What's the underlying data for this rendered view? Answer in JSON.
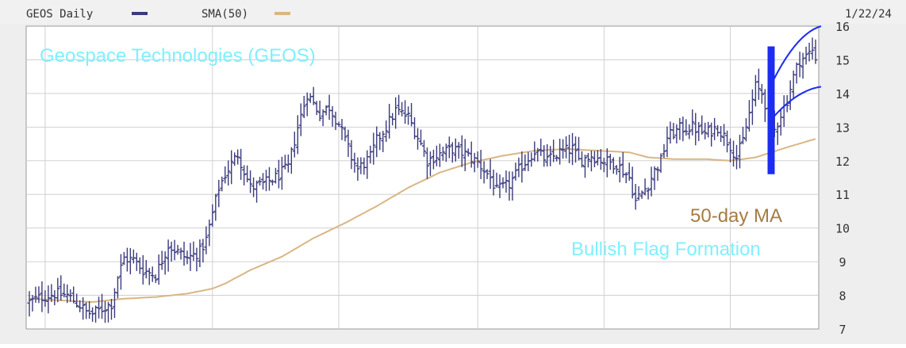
{
  "chart_data": {
    "type": "bar",
    "ohlc": true,
    "header": {
      "ticker_label": "GEOS Daily",
      "sma_label": "SMA(50)",
      "date": "1/22/24"
    },
    "colors": {
      "price": "#3a3a7e",
      "sma": "#d9b683",
      "grid": "#d0d0d0",
      "flag": "#1c2cf0",
      "title_text": "#7ff0ff",
      "ma_text": "#a57c43",
      "flag_text": "#7ff0ff",
      "header_bg": "#f1f1f1",
      "plot_bg": "#ffffff",
      "frame_bg": "#eeeeee"
    },
    "ylim": [
      7,
      16
    ],
    "yticks": [
      "7",
      "8",
      "9",
      "10",
      "11",
      "12",
      "13",
      "14",
      "15",
      "16"
    ],
    "grid": true,
    "sessions": 250,
    "annotations": {
      "title": "Geospace Technologies (GEOS)",
      "ma_label": "50-day MA",
      "pattern_label": "Bullish Flag Formation"
    },
    "price_knots": [
      [
        0,
        7.8
      ],
      [
        4,
        7.95
      ],
      [
        8,
        8.05
      ],
      [
        12,
        8.0
      ],
      [
        14,
        7.85
      ],
      [
        16,
        7.7
      ],
      [
        18,
        7.5
      ],
      [
        20,
        7.45
      ],
      [
        22,
        7.55
      ],
      [
        26,
        7.75
      ],
      [
        28,
        8.55
      ],
      [
        30,
        9.1
      ],
      [
        33,
        9.05
      ],
      [
        36,
        8.75
      ],
      [
        40,
        8.6
      ],
      [
        44,
        9.5
      ],
      [
        46,
        9.35
      ],
      [
        50,
        9.1
      ],
      [
        54,
        9.3
      ],
      [
        56,
        9.65
      ],
      [
        60,
        11.2
      ],
      [
        62,
        11.6
      ],
      [
        66,
        12.2
      ],
      [
        70,
        11.2
      ],
      [
        74,
        11.3
      ],
      [
        78,
        11.5
      ],
      [
        82,
        11.8
      ],
      [
        85,
        13.0
      ],
      [
        88,
        14.0
      ],
      [
        92,
        13.4
      ],
      [
        95,
        13.6
      ],
      [
        98,
        13.1
      ],
      [
        102,
        12.1
      ],
      [
        104,
        11.75
      ],
      [
        108,
        12.1
      ],
      [
        110,
        12.6
      ],
      [
        113,
        13.0
      ],
      [
        116,
        13.5
      ],
      [
        120,
        13.3
      ],
      [
        124,
        12.5
      ],
      [
        126,
        12.0
      ],
      [
        130,
        12.2
      ],
      [
        134,
        12.35
      ],
      [
        138,
        12.2
      ],
      [
        142,
        11.95
      ],
      [
        146,
        11.5
      ],
      [
        148,
        11.1
      ],
      [
        152,
        11.3
      ],
      [
        156,
        11.85
      ],
      [
        160,
        12.3
      ],
      [
        164,
        12.0
      ],
      [
        168,
        12.25
      ],
      [
        172,
        12.35
      ],
      [
        174,
        12.0
      ],
      [
        178,
        12.15
      ],
      [
        182,
        12.0
      ],
      [
        186,
        11.9
      ],
      [
        190,
        11.5
      ],
      [
        192,
        10.8
      ],
      [
        196,
        11.3
      ],
      [
        198,
        11.7
      ],
      [
        200,
        12.0
      ],
      [
        202,
        12.7
      ],
      [
        206,
        12.95
      ],
      [
        210,
        13.0
      ],
      [
        214,
        12.8
      ],
      [
        218,
        13.0
      ],
      [
        222,
        12.45
      ],
      [
        224,
        12.1
      ],
      [
        226,
        12.6
      ],
      [
        228,
        13.4
      ],
      [
        230,
        14.2
      ],
      [
        232,
        14.0
      ],
      [
        234,
        13.4
      ],
      [
        236,
        12.9
      ],
      [
        238,
        13.4
      ],
      [
        240,
        13.8
      ],
      [
        242,
        14.5
      ],
      [
        244,
        15.0
      ],
      [
        246,
        15.1
      ],
      [
        248,
        15.3
      ],
      [
        249,
        15.1
      ]
    ],
    "sma_knots": [
      [
        0,
        7.9
      ],
      [
        10,
        7.85
      ],
      [
        20,
        7.8
      ],
      [
        30,
        7.9
      ],
      [
        40,
        7.95
      ],
      [
        50,
        8.05
      ],
      [
        58,
        8.2
      ],
      [
        62,
        8.35
      ],
      [
        70,
        8.75
      ],
      [
        80,
        9.15
      ],
      [
        90,
        9.7
      ],
      [
        100,
        10.15
      ],
      [
        110,
        10.65
      ],
      [
        120,
        11.2
      ],
      [
        130,
        11.65
      ],
      [
        140,
        11.95
      ],
      [
        150,
        12.15
      ],
      [
        160,
        12.3
      ],
      [
        170,
        12.35
      ],
      [
        180,
        12.3
      ],
      [
        190,
        12.25
      ],
      [
        196,
        12.1
      ],
      [
        204,
        12.05
      ],
      [
        214,
        12.05
      ],
      [
        222,
        12.0
      ],
      [
        230,
        12.1
      ],
      [
        240,
        12.4
      ],
      [
        249,
        12.65
      ]
    ]
  }
}
